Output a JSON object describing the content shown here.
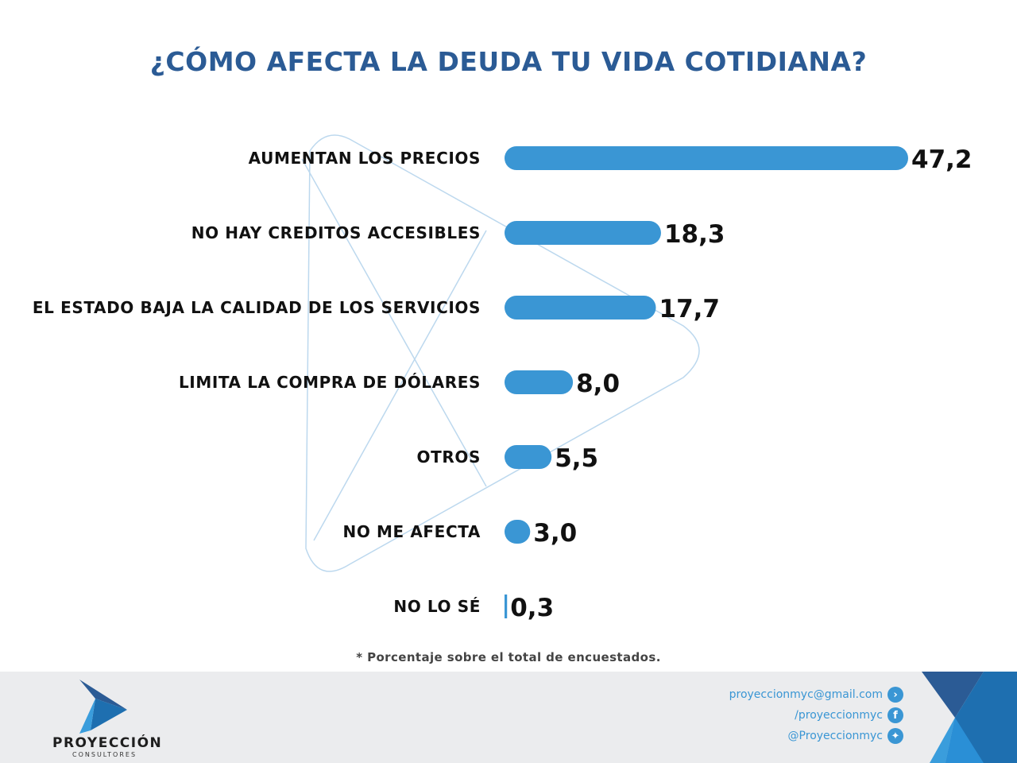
{
  "title": "¿CÓMO AFECTA LA DEUDA TU VIDA COTIDIANA?",
  "chart_data": {
    "type": "bar",
    "orientation": "horizontal",
    "title": "¿CÓMO AFECTA LA DEUDA TU VIDA COTIDIANA?",
    "categories": [
      "AUMENTAN LOS PRECIOS",
      "NO HAY CREDITOS ACCESIBLES",
      "EL ESTADO BAJA LA CALIDAD DE LOS SERVICIOS",
      "LIMITA LA COMPRA DE DÓLARES",
      "OTROS",
      "NO ME AFECTA",
      "NO LO SÉ"
    ],
    "values": [
      47.2,
      18.3,
      17.7,
      8.0,
      5.5,
      3.0,
      0.3
    ],
    "value_labels": [
      "47,2",
      "18,3",
      "17,7",
      "8,0",
      "5,5",
      "3,0",
      "0,3"
    ],
    "unit": "%",
    "grid": false,
    "legend": "none",
    "bar_color": "#3a96d4"
  },
  "note": "* Porcentaje sobre el total de encuestados.",
  "footer": {
    "logo_name": "PROYECCIÓN",
    "logo_sub": "CONSULTORES",
    "email": "proyeccionmyc@gmail.com",
    "facebook": "/proyeccionmyc",
    "twitter": "@Proyeccionmyc"
  }
}
